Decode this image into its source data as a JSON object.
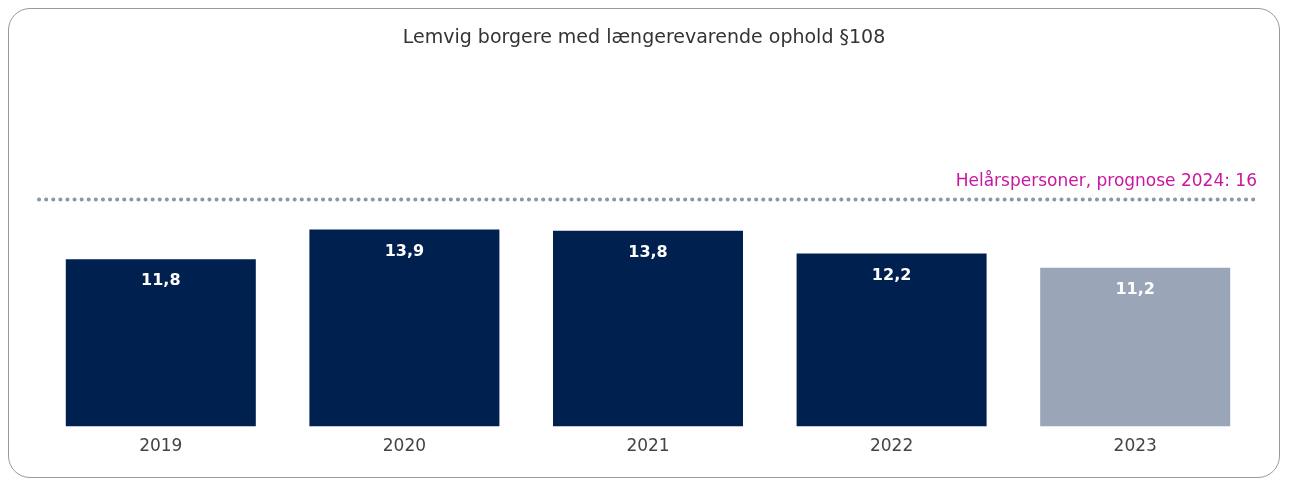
{
  "chart_data": {
    "type": "bar",
    "title": "Lemvig borgere med længerevarende ophold §108",
    "categories": [
      "2019",
      "2020",
      "2021",
      "2022",
      "2023"
    ],
    "values": [
      11.8,
      13.9,
      13.8,
      12.2,
      11.2
    ],
    "colors": [
      "#00204f",
      "#00204f",
      "#00204f",
      "#00204f",
      "#9aa5b8"
    ],
    "value_labels": [
      "11,8",
      "13,9",
      "13,8",
      "12,2",
      "11,2"
    ],
    "tick_labels": "x",
    "grid": false,
    "legend": false,
    "ref_lines": [
      {
        "axis": "y",
        "value": 16,
        "label": "Helårspersoner, prognose 2024: 16",
        "color": "#8a96aa",
        "line_style": "dotted"
      }
    ]
  }
}
